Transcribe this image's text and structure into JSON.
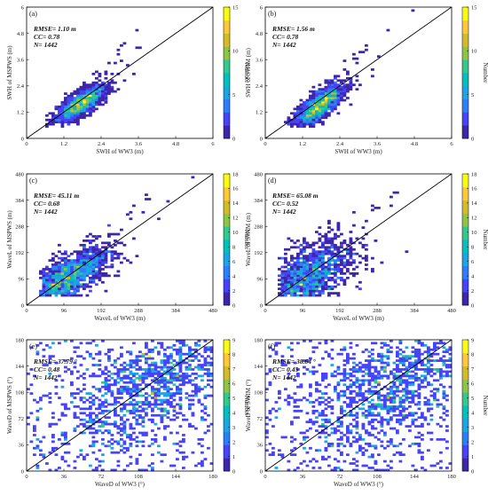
{
  "colormap": [
    "#3e26a8",
    "#4743f8",
    "#2c7ff9",
    "#1da4e3",
    "#06bebb",
    "#34c88f",
    "#8dc449",
    "#d4bb2a",
    "#fdc83a",
    "#f9fb15"
  ],
  "chart_data": [
    {
      "type": "heatmap",
      "panel": "(a)",
      "xlabel": "SWH of WW3 (m)",
      "ylabel": "SWH of MSPWS (m)",
      "xticks": [
        "0",
        "1.2",
        "2.4",
        "3.6",
        "4.8",
        "6"
      ],
      "yticks": [
        "0",
        "1.2",
        "2.4",
        "3.6",
        "4.8",
        "6"
      ],
      "range": [
        0,
        6
      ],
      "stats": [
        "RMSE= 1.10 m",
        "CC= 0.78",
        "N= 1442"
      ],
      "colorbar": {
        "label": "Number",
        "ticks": [
          "0",
          "5",
          "10",
          "15"
        ],
        "max": 15
      },
      "cloud": {
        "center": [
          1.75,
          1.6
        ],
        "sx": 0.4,
        "sy": 0.42,
        "corr": 0.78,
        "peak": 15,
        "bins": 0.1
      },
      "one_to_one": true
    },
    {
      "type": "heatmap",
      "panel": "(b)",
      "xlabel": "SWH of WW3 (m)",
      "ylabel": "SWH of SWIM (m)",
      "xticks": [
        "0",
        "1.2",
        "2.4",
        "3.6",
        "4.8",
        "6"
      ],
      "yticks": [
        "0",
        "1.2",
        "2.4",
        "3.6",
        "4.8",
        "6"
      ],
      "range": [
        0,
        6
      ],
      "stats": [
        "RMSE= 1.56 m",
        "CC= 0.78",
        "N= 1442"
      ],
      "colorbar": {
        "label": "Number",
        "ticks": [
          "0",
          "5",
          "10",
          "15"
        ],
        "max": 15
      },
      "cloud": {
        "center": [
          1.75,
          1.5
        ],
        "sx": 0.4,
        "sy": 0.5,
        "corr": 0.78,
        "peak": 15,
        "bins": 0.1
      },
      "one_to_one": true
    },
    {
      "type": "heatmap",
      "panel": "(c)",
      "xlabel": "WaveL of WW3 (m)",
      "ylabel": "WaveL of MSPWS (m)",
      "xticks": [
        "0",
        "96",
        "192",
        "288",
        "384",
        "480"
      ],
      "yticks": [
        "0",
        "96",
        "192",
        "288",
        "384",
        "480"
      ],
      "range": [
        0,
        480
      ],
      "stats": [
        "RMSE= 45.11 m",
        "CC= 0.68",
        "N= 1442"
      ],
      "colorbar": {
        "label": "Number",
        "ticks": [
          "0",
          "2",
          "4",
          "6",
          "8",
          "10",
          "12",
          "14",
          "16",
          "18"
        ],
        "max": 18
      },
      "cloud": {
        "center": [
          105,
          100
        ],
        "sx": 55,
        "sy": 55,
        "corr": 0.68,
        "peak": 18,
        "bins": 8
      },
      "one_to_one": true
    },
    {
      "type": "heatmap",
      "panel": "(d)",
      "xlabel": "WaveL of WW3 (m)",
      "ylabel": "WaveL of SWIM (m)",
      "xticks": [
        "0",
        "96",
        "192",
        "288",
        "384",
        "480"
      ],
      "yticks": [
        "0",
        "96",
        "192",
        "288",
        "384",
        "480"
      ],
      "range": [
        0,
        480
      ],
      "stats": [
        "RMSE= 65.08 m",
        "CC= 0.52",
        "N= 1442"
      ],
      "colorbar": {
        "label": "Number",
        "ticks": [
          "0",
          "2",
          "4",
          "6",
          "8",
          "10",
          "12",
          "14",
          "16",
          "18"
        ],
        "max": 18
      },
      "cloud": {
        "center": [
          105,
          95
        ],
        "sx": 60,
        "sy": 70,
        "corr": 0.52,
        "peak": 18,
        "bins": 8
      },
      "one_to_one": true
    },
    {
      "type": "heatmap",
      "panel": "(e)",
      "xlabel": "WaveD of WW3 (°)",
      "ylabel": "WaveD of MSPWS (°)",
      "xticks": [
        "0",
        "36",
        "72",
        "108",
        "144",
        "180"
      ],
      "yticks": [
        "0",
        "36",
        "72",
        "108",
        "144",
        "180"
      ],
      "range": [
        0,
        180
      ],
      "stats": [
        "RMSE= 37.79 °",
        "CC= 0.48",
        "N= 1442"
      ],
      "colorbar": {
        "label": "Number",
        "ticks": [
          "0",
          "1",
          "2",
          "3",
          "4",
          "5",
          "6",
          "7",
          "8",
          "9"
        ],
        "max": 9
      },
      "cloud": {
        "center": [
          120,
          118
        ],
        "sx": 40,
        "sy": 40,
        "corr": 0.48,
        "peak": 9,
        "bins": 3
      },
      "one_to_one": true
    },
    {
      "type": "heatmap",
      "panel": "(f)",
      "xlabel": "WaveD of WW3 (°)",
      "ylabel": "WaveD of SWIM (°)",
      "xticks": [
        "0",
        "36",
        "72",
        "108",
        "144",
        "180"
      ],
      "yticks": [
        "0",
        "36",
        "72",
        "108",
        "144",
        "180"
      ],
      "range": [
        0,
        180
      ],
      "stats": [
        "RMSE= 38.64 °",
        "CC= 0.45",
        "N= 1442"
      ],
      "colorbar": {
        "label": "Number",
        "ticks": [
          "0",
          "1",
          "2",
          "3",
          "4",
          "5",
          "6",
          "7",
          "8",
          "9"
        ],
        "max": 9
      },
      "cloud": {
        "center": [
          118,
          115
        ],
        "sx": 42,
        "sy": 42,
        "corr": 0.45,
        "peak": 9,
        "bins": 3
      },
      "one_to_one": true
    }
  ]
}
